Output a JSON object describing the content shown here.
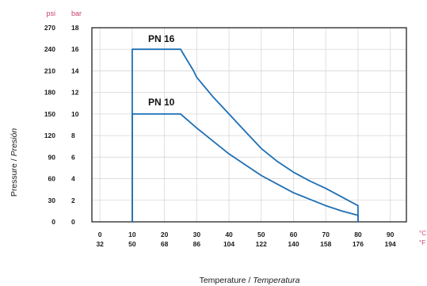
{
  "chart_data": {
    "type": "line",
    "title": "",
    "ylabel": "Pressure / ",
    "ylabel_italic": "Presión",
    "xlabel": "Temperature / ",
    "xlabel_italic": "Temperatura",
    "y_unit_psi": "psi",
    "y_unit_bar": "bar",
    "x_unit_c": "°C",
    "x_unit_f": "°F",
    "ylim": [
      0,
      18
    ],
    "xlim": [
      -2.5,
      95
    ],
    "y_ticks_bar": [
      "18",
      "16",
      "14",
      "12",
      "10",
      "8",
      "6",
      "4",
      "2",
      "0"
    ],
    "y_ticks_psi": [
      "270",
      "240",
      "210",
      "180",
      "150",
      "120",
      "90",
      "60",
      "30",
      "0"
    ],
    "x_ticks_c": [
      "0",
      "10",
      "20",
      "30",
      "40",
      "50",
      "60",
      "70",
      "80",
      "90"
    ],
    "x_ticks_f": [
      "32",
      "50",
      "68",
      "86",
      "104",
      "122",
      "140",
      "158",
      "176",
      "194"
    ],
    "series": [
      {
        "name": "PN 16",
        "x": [
          10,
          10,
          25,
          26,
          29,
          30,
          35,
          40,
          45,
          50,
          55,
          60,
          65,
          70,
          75,
          80,
          80
        ],
        "y": [
          0,
          16,
          16,
          15.5,
          14,
          13.4,
          11.6,
          10,
          8.4,
          6.8,
          5.6,
          4.6,
          3.8,
          3.1,
          2.3,
          1.5,
          0
        ]
      },
      {
        "name": "PN 10",
        "x": [
          10,
          10,
          25,
          30,
          35,
          40,
          45,
          50,
          55,
          60,
          65,
          70,
          75,
          80,
          80
        ],
        "y": [
          0,
          10,
          10,
          8.7,
          7.5,
          6.3,
          5.3,
          4.3,
          3.5,
          2.7,
          2.1,
          1.5,
          1.0,
          0.6,
          0
        ]
      }
    ],
    "colors": {
      "series": "#1f6fb4",
      "frame": "#222222",
      "grid": "#d7d7d7",
      "unit_accent": "#c8406a"
    },
    "grid": true,
    "legend": "none"
  }
}
